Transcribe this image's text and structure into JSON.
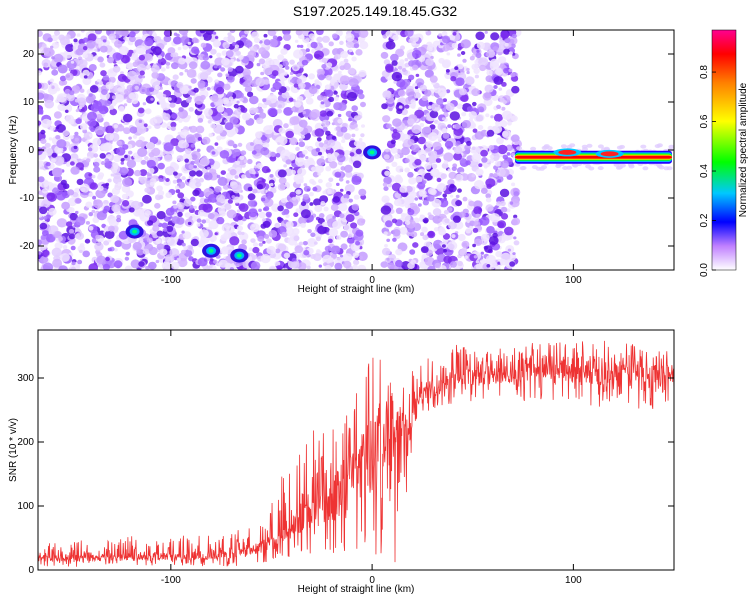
{
  "title": "S197.2025.149.18.45.G32",
  "colors": {
    "spectrogram_dots": "#7b2cf0",
    "snr_line": "#ee3333",
    "axis": "#000000",
    "colormap": [
      "#ffffff",
      "#e8c8ff",
      "#8000ff",
      "#0000ff",
      "#00c8ff",
      "#00ff00",
      "#ffff00",
      "#ff8000",
      "#ff0000",
      "#ff0080"
    ]
  },
  "chart_data": [
    {
      "id": "spectrogram",
      "type": "heatmap",
      "xlabel": "Height of straight line (km)",
      "ylabel": "Frequency (Hz)",
      "xlim": [
        -166,
        150
      ],
      "ylim": [
        -25,
        25
      ],
      "x_ticks": [
        -100,
        0,
        100
      ],
      "x_tick_labels": [
        "-100",
        "0",
        "100"
      ],
      "y_ticks": [
        -20,
        -10,
        0,
        10,
        20
      ],
      "y_tick_labels": [
        "-20",
        "-10",
        "0",
        "10",
        "20"
      ],
      "noise_region_x": [
        [
          -166,
          -4
        ],
        [
          6,
          72
        ]
      ],
      "gap_x": [
        -4,
        6
      ],
      "signal_band": {
        "x": [
          71,
          149
        ],
        "freq": -1.5,
        "width": 1.8,
        "peak_amplitude": 1.0
      },
      "bright_spots": [
        {
          "x": 0,
          "y": -0.5,
          "amplitude": 0.35
        },
        {
          "x": -66,
          "y": -22,
          "amplitude": 0.2
        },
        {
          "x": -80,
          "y": -21,
          "amplitude": 0.15
        },
        {
          "x": -118,
          "y": -17,
          "amplitude": 0.15
        }
      ],
      "colorbar": {
        "label": "Normalized spectral amplitude",
        "range": [
          0,
          0.97
        ],
        "ticks": [
          0.0,
          0.2,
          0.4,
          0.6,
          0.8
        ],
        "tick_labels": [
          "0.0",
          "0.2",
          "0.4",
          "0.6",
          "0.8"
        ]
      }
    },
    {
      "id": "snr",
      "type": "line",
      "xlabel": "Height of straight line (km)",
      "ylabel": "SNR (10 * v/v)",
      "xlim": [
        -166,
        150
      ],
      "ylim": [
        0,
        375
      ],
      "x_ticks": [
        -100,
        0,
        100
      ],
      "x_tick_labels": [
        "-100",
        "0",
        "100"
      ],
      "y_ticks": [
        0,
        100,
        200,
        300
      ],
      "y_tick_labels": [
        "0",
        "100",
        "200",
        "300"
      ],
      "series": [
        {
          "x": [
            -166,
            -150,
            -130,
            -110,
            -90,
            -70,
            -60,
            -55,
            -50,
            -45,
            -40,
            -35,
            -30,
            -25,
            -20,
            -15,
            -10,
            -5,
            0,
            5,
            10,
            15,
            18,
            20,
            25,
            30,
            40,
            50,
            60,
            70,
            80,
            90,
            100,
            110,
            120,
            130,
            140,
            150
          ],
          "values": [
            18,
            18,
            20,
            20,
            22,
            25,
            30,
            35,
            45,
            55,
            70,
            75,
            85,
            95,
            110,
            125,
            140,
            160,
            180,
            200,
            200,
            185,
            210,
            240,
            265,
            280,
            295,
            305,
            310,
            312,
            315,
            315,
            315,
            312,
            310,
            308,
            300,
            295
          ],
          "min_envelope": [
            5,
            5,
            5,
            5,
            5,
            5,
            8,
            10,
            15,
            20,
            20,
            25,
            20,
            15,
            15,
            15,
            10,
            10,
            20,
            20,
            10,
            10,
            140,
            200,
            230,
            250,
            260,
            255,
            260,
            262,
            265,
            265,
            262,
            255,
            250,
            250,
            245,
            240
          ],
          "max_envelope": [
            45,
            45,
            50,
            55,
            55,
            60,
            70,
            80,
            110,
            150,
            180,
            190,
            230,
            230,
            235,
            250,
            270,
            300,
            340,
            335,
            300,
            290,
            300,
            315,
            325,
            340,
            355,
            355,
            350,
            355,
            355,
            360,
            365,
            362,
            358,
            355,
            350,
            345
          ]
        }
      ]
    }
  ]
}
